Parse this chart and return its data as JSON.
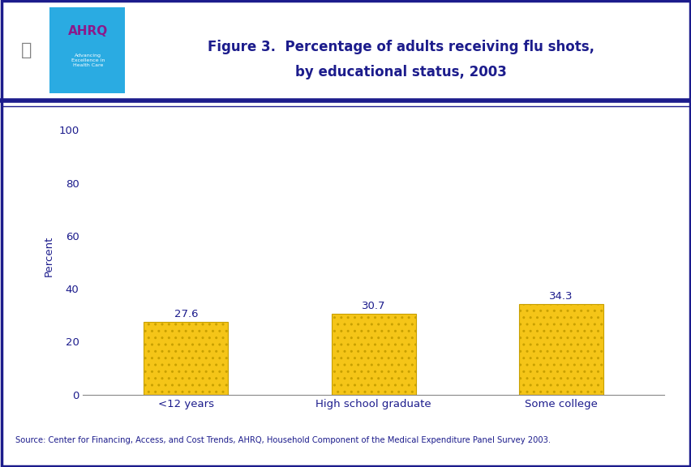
{
  "categories": [
    "<12 years",
    "High school graduate",
    "Some college"
  ],
  "values": [
    27.6,
    30.7,
    34.3
  ],
  "bar_color": "#F5C518",
  "bar_edgecolor": "#C8A000",
  "title_line1": "Figure 3.  Percentage of adults receiving flu shots,",
  "title_line2": "by educational status, 2003",
  "title_color": "#1C1C8C",
  "ylabel": "Percent",
  "ylabel_color": "#1C1C8C",
  "yticks": [
    0,
    20,
    40,
    60,
    80,
    100
  ],
  "ylim": [
    0,
    105
  ],
  "source_text": "Source: Center for Financing, Access, and Cost Trends, AHRQ, Household Component of the Medical Expenditure Panel Survey 2003.",
  "source_color": "#1C1C8C",
  "border_color": "#1C1C8C",
  "tick_label_color": "#1C1C8C",
  "value_label_color": "#1C1C8C",
  "background_color": "#FFFFFF",
  "header_bg": "#FFFFFF",
  "logo_bg": "#2AABE2",
  "header_line_color": "#1C1C8C",
  "fig_width": 8.53,
  "fig_height": 5.76,
  "dpi": 100
}
